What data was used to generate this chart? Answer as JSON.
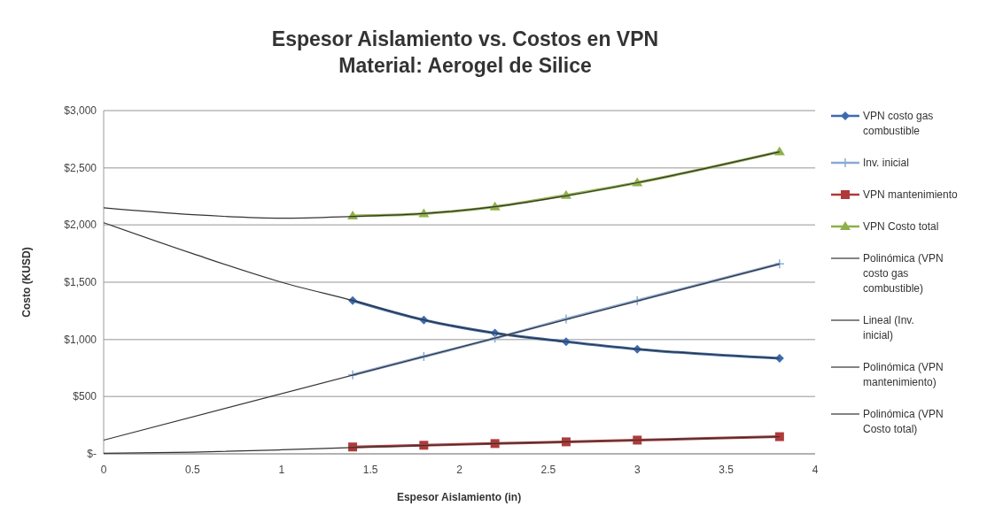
{
  "chart_data": {
    "type": "line",
    "title": "Espesor Aislamiento vs. Costos en VPN",
    "subtitle": "Material: Aerogel de Silice",
    "xlabel": "Espesor Aislamiento (in)",
    "ylabel": "Costo (KUSD)",
    "x": [
      1.4,
      1.8,
      2.2,
      2.6,
      3.0,
      3.8
    ],
    "series": [
      {
        "name": "VPN costo gas combustible",
        "color": "#3c6bb0",
        "marker": "diamond",
        "values": [
          1340,
          1170,
          1055,
          980,
          915,
          835
        ]
      },
      {
        "name": "Inv. inicial",
        "color": "#8aa9d6",
        "marker": "cross",
        "values": [
          690,
          850,
          1010,
          1180,
          1340,
          1660
        ]
      },
      {
        "name": "VPN mantenimiento",
        "color": "#b03a3a",
        "marker": "square",
        "values": [
          60,
          75,
          90,
          105,
          120,
          150
        ]
      },
      {
        "name": "VPN Costo total",
        "color": "#8fb04a",
        "marker": "triangle",
        "values": [
          2080,
          2100,
          2160,
          2260,
          2370,
          2640
        ]
      },
      {
        "name": "Polinómica (VPN costo gas combustible)",
        "color": "#333333",
        "marker": "none",
        "x": [
          0,
          0.5,
          1,
          1.4,
          1.8,
          2.2,
          2.6,
          3.0,
          3.4,
          3.8
        ],
        "values": [
          2020,
          1750,
          1500,
          1340,
          1170,
          1055,
          980,
          915,
          870,
          835
        ]
      },
      {
        "name": "Lineal (Inv. inicial)",
        "color": "#333333",
        "marker": "none",
        "x": [
          0,
          3.8
        ],
        "values": [
          120,
          1660
        ]
      },
      {
        "name": "Polinómica (VPN mantenimiento)",
        "color": "#333333",
        "marker": "none",
        "x": [
          0,
          0.5,
          1,
          1.4,
          1.8,
          2.2,
          2.6,
          3.0,
          3.8
        ],
        "values": [
          5,
          15,
          35,
          55,
          72,
          90,
          105,
          120,
          150
        ]
      },
      {
        "name": "Polinómica (VPN Costo total)",
        "color": "#333333",
        "marker": "none",
        "x": [
          0,
          0.5,
          1,
          1.4,
          1.8,
          2.2,
          2.6,
          3.0,
          3.4,
          3.8
        ],
        "values": [
          2150,
          2090,
          2060,
          2075,
          2100,
          2160,
          2255,
          2370,
          2500,
          2640
        ]
      }
    ],
    "xlim": [
      0,
      4
    ],
    "xticks": [
      0,
      0.5,
      1,
      1.5,
      2,
      2.5,
      3,
      3.5,
      4
    ],
    "ylim": [
      0,
      3000
    ],
    "yticks": [
      {
        "value": 0,
        "label": "$-"
      },
      {
        "value": 500,
        "label": "$500"
      },
      {
        "value": 1000,
        "label": "$1,000"
      },
      {
        "value": 1500,
        "label": "$1,500"
      },
      {
        "value": 2000,
        "label": "$2,000"
      },
      {
        "value": 2500,
        "label": "$2,500"
      },
      {
        "value": 3000,
        "label": "$3,000"
      }
    ],
    "grid": "y",
    "legend": "right"
  }
}
